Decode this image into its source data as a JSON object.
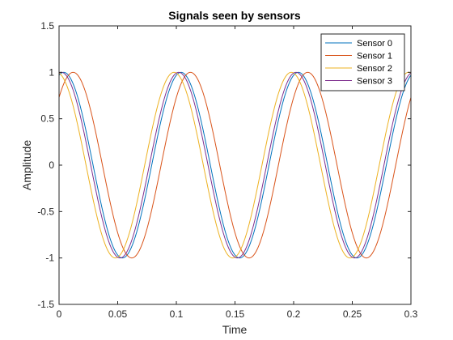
{
  "chart_data": {
    "type": "line",
    "title": "Signals seen by sensors",
    "xlabel": "Time",
    "ylabel": "Amplitude",
    "xlim": [
      0,
      0.3
    ],
    "ylim": [
      -1.5,
      1.5
    ],
    "xticks": [
      0,
      0.05,
      0.1,
      0.15,
      0.2,
      0.25,
      0.3
    ],
    "xtick_labels": [
      "0",
      "0.05",
      "0.1",
      "0.15",
      "0.2",
      "0.25",
      "0.3"
    ],
    "yticks": [
      -1.5,
      -1,
      -0.5,
      0,
      0.5,
      1,
      1.5
    ],
    "ytick_labels": [
      "-1.5",
      "-1",
      "-0.5",
      "0",
      "0.5",
      "1",
      "1.5"
    ],
    "grid": false,
    "legend_position": "top-right",
    "series": [
      {
        "name": "Sensor 0",
        "color": "#0072BD",
        "x": [
          0,
          0.05,
          0.1,
          0.15,
          0.2,
          0.25,
          0.3
        ],
        "y": [
          1,
          -1,
          1,
          -1,
          1,
          -1,
          1
        ],
        "peak_times": [
          0.004,
          0.104,
          0.204
        ]
      },
      {
        "name": "Sensor 1",
        "color": "#D95319",
        "x": [
          0,
          0.05,
          0.1,
          0.15,
          0.2,
          0.25,
          0.3
        ],
        "y": [
          0.73,
          -0.95,
          0.73,
          -0.95,
          0.73,
          -0.95,
          0.73
        ],
        "peak_times": [
          0.012,
          0.112,
          0.212
        ]
      },
      {
        "name": "Sensor 2",
        "color": "#EDB120",
        "x": [
          0,
          0.05,
          0.1,
          0.15,
          0.2,
          0.25,
          0.3
        ],
        "y": [
          0.98,
          -1,
          0.98,
          -1,
          0.98,
          -1,
          0.98
        ],
        "peak_times": [
          -0.002,
          0.098,
          0.198
        ]
      },
      {
        "name": "Sensor 3",
        "color": "#7E2F8E",
        "x": [
          0,
          0.05,
          0.1,
          0.15,
          0.2,
          0.25,
          0.3
        ],
        "y": [
          0.99,
          -1,
          0.99,
          -1,
          0.99,
          -1,
          0.99
        ],
        "peak_times": [
          0.002,
          0.102,
          0.202
        ]
      }
    ]
  }
}
